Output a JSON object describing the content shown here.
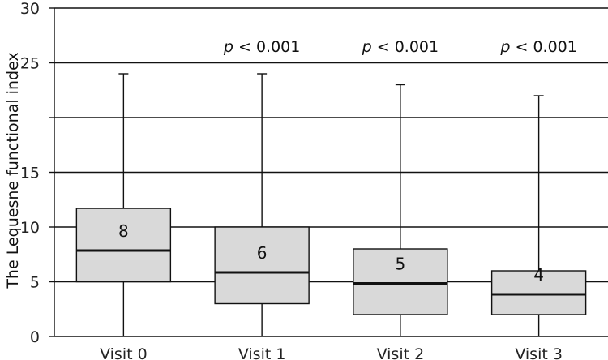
{
  "chart_data": {
    "type": "box",
    "ylabel": "The Lequesne functional index",
    "xlabel": "",
    "ylim": [
      0,
      30
    ],
    "yticks": [
      0,
      5,
      10,
      15,
      25,
      30
    ],
    "yticks_labels": [
      "0",
      "5",
      "10",
      "15",
      "25",
      "30"
    ],
    "gridlines_at": [
      5,
      10,
      15,
      20,
      25,
      30
    ],
    "grid": true,
    "colors": {
      "box_fill": "#d9d9d9",
      "stroke": "#111111",
      "grid": "#111111"
    },
    "categories": [
      "Visit 0",
      "Visit 1",
      "Visit 2",
      "Visit 3"
    ],
    "boxes": [
      {
        "label": "Visit 0",
        "min": 0,
        "q1": 5,
        "median": 8,
        "q3": 11.7,
        "max": 24,
        "median_label": "8",
        "annotation": ""
      },
      {
        "label": "Visit 1",
        "min": 0,
        "q1": 3,
        "median": 6,
        "q3": 10,
        "max": 24,
        "median_label": "6",
        "annotation_prefix": "p",
        "annotation": " < 0.001"
      },
      {
        "label": "Visit 2",
        "min": 0,
        "q1": 2,
        "median": 5,
        "q3": 8,
        "max": 23,
        "median_label": "5",
        "annotation_prefix": "p",
        "annotation": " < 0.001"
      },
      {
        "label": "Visit 3",
        "min": 0,
        "q1": 2,
        "median": 4,
        "q3": 6,
        "max": 22,
        "median_label": "4",
        "annotation_prefix": "p",
        "annotation": " < 0.001"
      }
    ]
  }
}
